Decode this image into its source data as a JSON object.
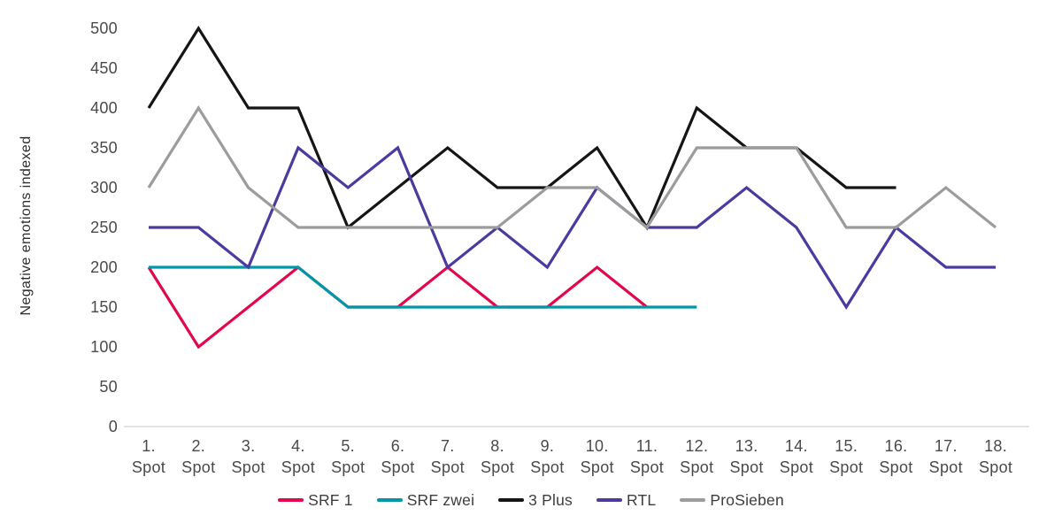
{
  "chart_data": {
    "type": "line",
    "title": "",
    "ylabel": "Negative emotions indexed",
    "xlabel": "",
    "ylim": [
      0,
      500
    ],
    "yticks": [
      0,
      50,
      100,
      150,
      200,
      250,
      300,
      350,
      400,
      450,
      500
    ],
    "categories": [
      "1. Spot",
      "2. Spot",
      "3. Spot",
      "4. Spot",
      "5. Spot",
      "6. Spot",
      "7. Spot",
      "8. Spot",
      "9. Spot",
      "10. Spot",
      "11. Spot",
      "12. Spot",
      "13. Spot",
      "14. Spot",
      "15. Spot",
      "16. Spot",
      "17. Spot",
      "18. Spot"
    ],
    "grid": false,
    "legend_position": "bottom",
    "axis_line_color": "#dbdbdb",
    "text_color": "#4a4a4a",
    "series": [
      {
        "name": "SRF 1",
        "color": "#e3074b",
        "values": [
          200,
          100,
          150,
          200,
          150,
          150,
          200,
          150,
          150,
          200,
          150,
          null,
          null,
          null,
          null,
          null,
          null,
          null
        ]
      },
      {
        "name": "SRF zwei",
        "color": "#0098a6",
        "values": [
          200,
          200,
          200,
          200,
          150,
          150,
          150,
          150,
          150,
          150,
          150,
          150,
          null,
          null,
          null,
          null,
          null,
          null
        ]
      },
      {
        "name": "3 Plus",
        "color": "#151515",
        "values": [
          400,
          500,
          400,
          400,
          250,
          300,
          350,
          300,
          300,
          350,
          250,
          400,
          350,
          350,
          300,
          300,
          null,
          null
        ]
      },
      {
        "name": "RTL",
        "color": "#4d3a9e",
        "values": [
          250,
          250,
          200,
          350,
          300,
          350,
          200,
          250,
          200,
          300,
          250,
          250,
          300,
          250,
          150,
          250,
          200,
          200
        ]
      },
      {
        "name": "ProSieben",
        "color": "#9c9c9c",
        "values": [
          300,
          400,
          300,
          250,
          250,
          250,
          250,
          250,
          300,
          300,
          250,
          350,
          350,
          350,
          250,
          250,
          300,
          250
        ]
      }
    ]
  }
}
